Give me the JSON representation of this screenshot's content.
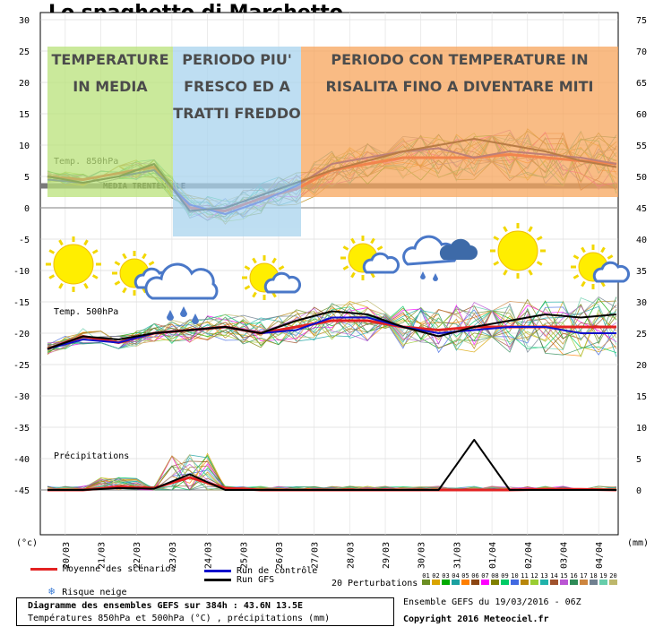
{
  "title": "Lo spaghetto di Marchetto",
  "panels": [
    {
      "lines": [
        "TEMPERATURE",
        "IN MEDIA"
      ],
      "color": "#b9e27a"
    },
    {
      "lines": [
        "PERIODO PIU'",
        "FRESCO ED A",
        "TRATTI FREDDO"
      ],
      "color": "#a9d4ee"
    },
    {
      "lines": [
        "PERIODO CON TEMPERATURE IN",
        "RISALITA FINO A DIVENTARE MITI"
      ],
      "color": "#f7a55c"
    }
  ],
  "annotations": {
    "media": "MEDIA TRENTENNALE",
    "t850": "Temp. 850hPa",
    "t500": "Temp. 500hPa",
    "precip": "Précipitations"
  },
  "weather_icons": [
    "sun-icon",
    "partly-cloudy-icon",
    "rain-cloud-icon",
    "partly-cloudy-icon",
    "partly-cloudy-icon",
    "storm-cloud-icon",
    "sun-icon",
    "partly-cloudy-icon"
  ],
  "legend": {
    "mean": "Moyenne des scénarios",
    "control": "Run de contrôle",
    "gfs": "Run GFS",
    "snow": "Risque neige",
    "perturbations": "20 Perturbations",
    "pert_numbers": [
      "01",
      "02",
      "03",
      "04",
      "05",
      "06",
      "07",
      "08",
      "09",
      "10",
      "11",
      "12",
      "13",
      "14",
      "15",
      "16",
      "17",
      "18",
      "19",
      "20"
    ],
    "pert_colors": [
      "#6b8e23",
      "#d9a400",
      "#00aa00",
      "#1aa0a0",
      "#ff7f00",
      "#8b4513",
      "#ff00ff",
      "#808000",
      "#00cc66",
      "#4169e1",
      "#b8860b",
      "#9acd32",
      "#20b2aa",
      "#a0522d",
      "#ba55d3",
      "#2e8b57",
      "#cd853f",
      "#708090",
      "#66cdaa",
      "#bdb76b"
    ]
  },
  "footer": {
    "box_line1": "Diagramme des ensembles GEFS sur 384h : 43.6N 13.5E",
    "box_line2": "Températures 850hPa et 500hPa (°C) , précipitations (mm)",
    "ensemble": "Ensemble GEFS du 19/03/2016 - 06Z",
    "copyright": "Copyright 2016 Meteociel.fr"
  },
  "colors": {
    "mean": "#e32222",
    "control": "#1010cc",
    "gfs": "#000000",
    "media_line": "#7a7a7a"
  },
  "chart_data": {
    "type": "line",
    "x_ticks": [
      "20/03",
      "21/03",
      "22/03",
      "23/03",
      "24/03",
      "25/03",
      "26/03",
      "27/03",
      "28/03",
      "29/03",
      "30/03",
      "31/03",
      "01/04",
      "02/04",
      "03/04",
      "04/04"
    ],
    "x": [
      0,
      1,
      2,
      3,
      4,
      5,
      6,
      7,
      8,
      9,
      10,
      11,
      12,
      13,
      14,
      15,
      16
    ],
    "ylabel_left": "(°c)",
    "ylabel_right": "(mm)",
    "left_axis": {
      "range": [
        -45,
        30
      ],
      "ticks": [
        30,
        25,
        20,
        15,
        10,
        5,
        0,
        -5,
        -10,
        -15,
        -20,
        -25,
        -30,
        -35,
        -40,
        -45
      ]
    },
    "right_axis": {
      "ticks": [
        75,
        70,
        65,
        60,
        55,
        50,
        45,
        40,
        35,
        30,
        25,
        20,
        15,
        10,
        5,
        0
      ]
    },
    "media_trentennale_850": 3.5,
    "series": [
      {
        "name": "Temp. 850hPa - Moyenne des scénarios",
        "values": [
          5,
          4.5,
          5.5,
          6.5,
          0,
          -0.5,
          1.5,
          3,
          6,
          7,
          8,
          8,
          8,
          8.5,
          8,
          7.5,
          7
        ]
      },
      {
        "name": "Temp. 850hPa - Run de contrôle",
        "values": [
          4.5,
          4,
          5,
          6,
          0.5,
          -1,
          1,
          3.5,
          7,
          8,
          9,
          9.5,
          8,
          9,
          8.5,
          8,
          7
        ]
      },
      {
        "name": "Temp. 850hPa - Run GFS",
        "values": [
          5,
          4,
          5,
          7,
          -0.5,
          0,
          2,
          4,
          6,
          7.5,
          9,
          10,
          11,
          10,
          9,
          7.5,
          6.5
        ]
      },
      {
        "name": "Temp. 500hPa - Moyenne des scénarios",
        "values": [
          -22.5,
          -20.5,
          -21.5,
          -20,
          -19.5,
          -19,
          -20,
          -19,
          -18,
          -18,
          -19,
          -19.5,
          -19,
          -19,
          -19,
          -19,
          -19
        ]
      },
      {
        "name": "Temp. 500hPa - Run de contrôle",
        "values": [
          -22.5,
          -21,
          -21.5,
          -20,
          -19.5,
          -19,
          -20,
          -19.5,
          -17.5,
          -17.5,
          -19,
          -20,
          -19.5,
          -19,
          -19,
          -20,
          -20
        ]
      },
      {
        "name": "Temp. 500hPa - Run GFS",
        "values": [
          -22.5,
          -20.5,
          -21,
          -20,
          -19.5,
          -19,
          -20,
          -18,
          -16.5,
          -17,
          -19,
          -20.5,
          -19,
          -18,
          -17,
          -17.5,
          -17
        ]
      },
      {
        "name": "Précipitations - Moyenne des scénarios",
        "values": [
          0,
          0,
          0.5,
          0.3,
          2,
          0.3,
          0,
          0,
          0,
          0,
          0,
          0,
          0,
          0,
          0.1,
          0.1,
          0
        ]
      },
      {
        "name": "Précipitations - Run GFS",
        "values": [
          0,
          0,
          0.3,
          0.2,
          2.5,
          0,
          0,
          0,
          0,
          0,
          0,
          0,
          8,
          0,
          0,
          0,
          0
        ]
      }
    ]
  }
}
